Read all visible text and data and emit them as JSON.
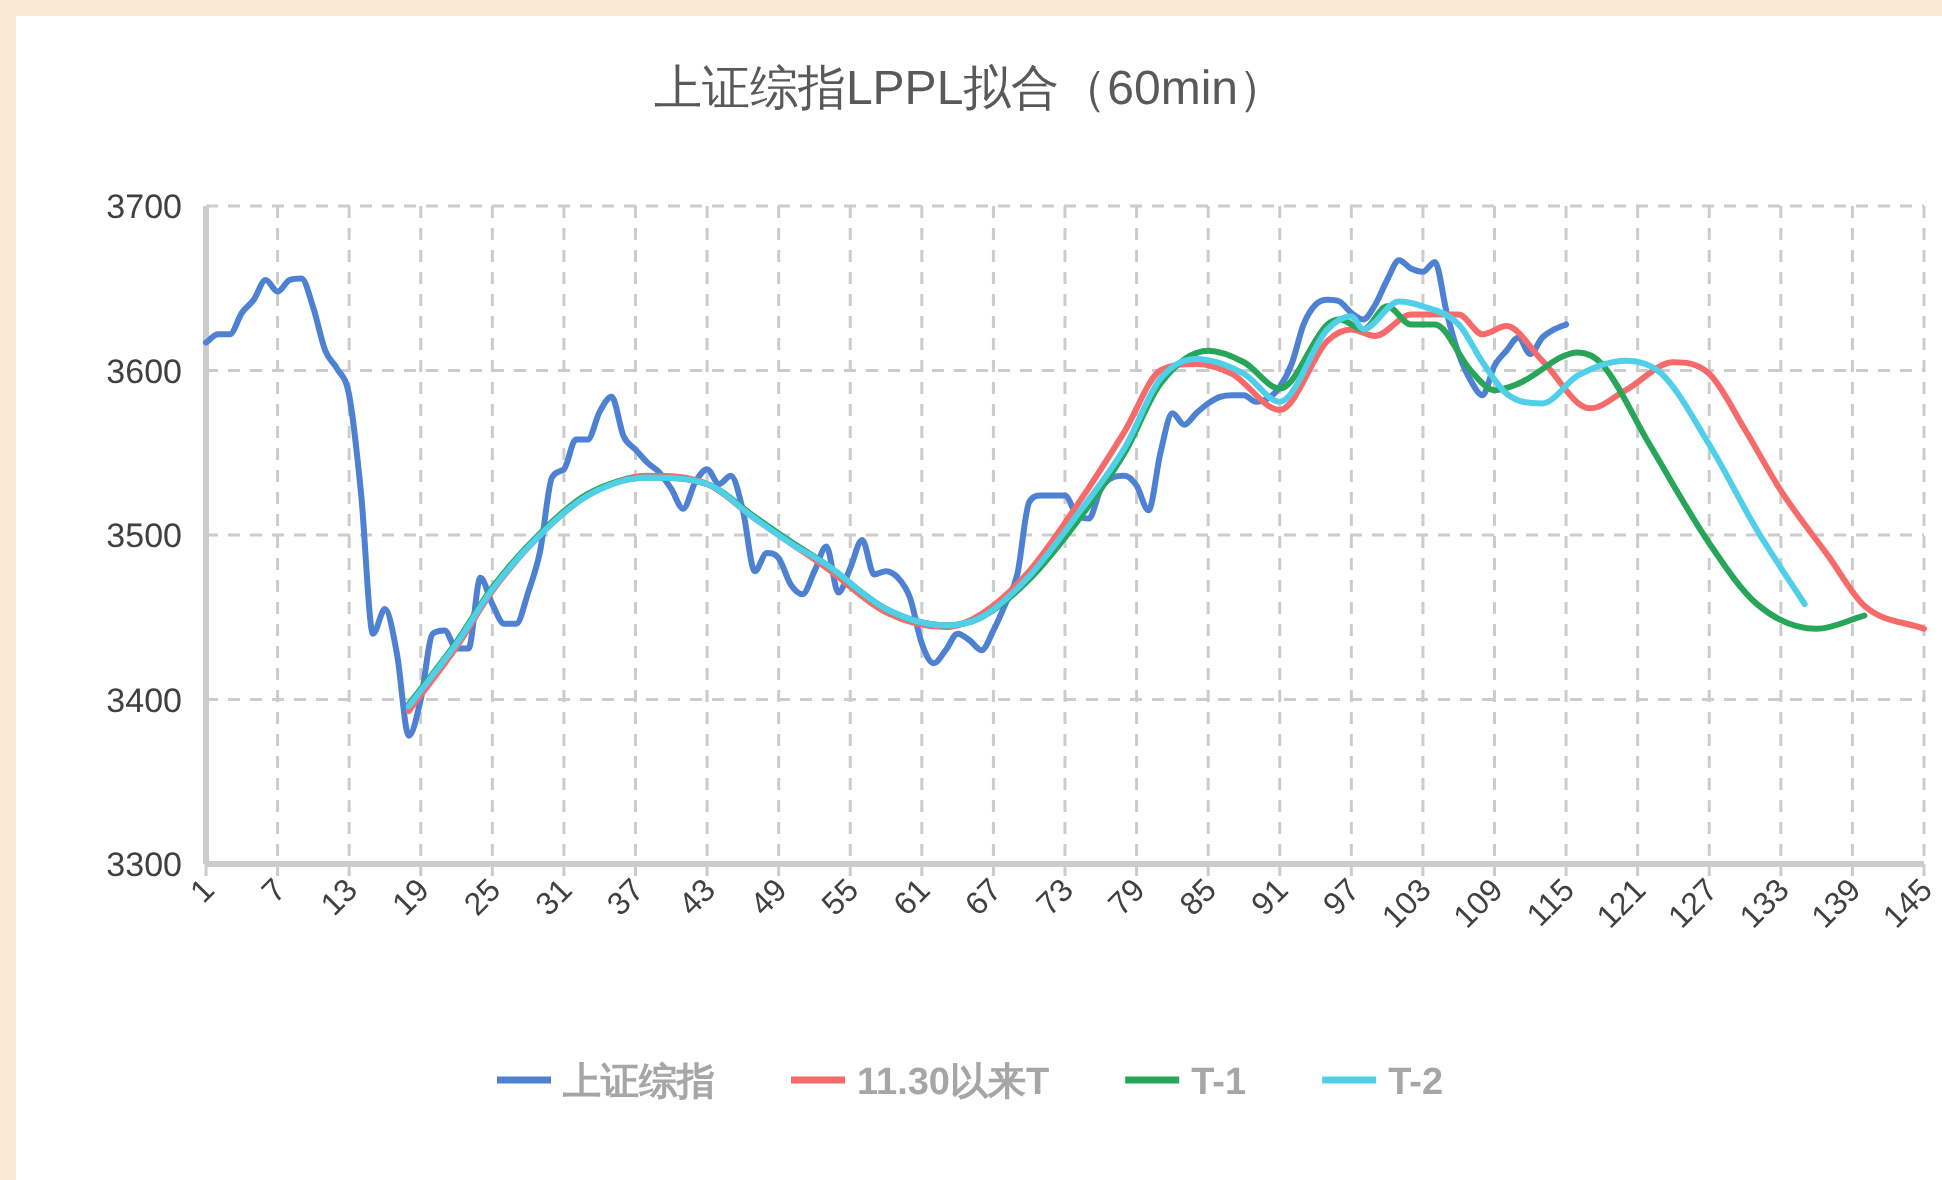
{
  "chart_data": {
    "type": "line",
    "title": "上证综指LPPL拟合（60min）",
    "xlim": [
      1,
      145
    ],
    "xticks": [
      1,
      7,
      13,
      19,
      25,
      31,
      37,
      43,
      49,
      55,
      61,
      67,
      73,
      79,
      85,
      91,
      97,
      103,
      109,
      115,
      121,
      127,
      133,
      139,
      145
    ],
    "ylim": [
      3300,
      3700
    ],
    "yticks": [
      3300,
      3400,
      3500,
      3600,
      3700
    ],
    "grid": true,
    "legend": "bottom",
    "marker": "none",
    "series": [
      {
        "name": "上证综指",
        "color": "#4f81d3",
        "x": [
          1,
          2,
          3,
          4,
          5,
          6,
          7,
          8,
          9,
          10,
          11,
          12,
          13,
          14,
          15,
          16,
          17,
          18,
          19,
          20,
          21,
          22,
          23,
          24,
          25,
          26,
          27,
          28,
          29,
          30,
          31,
          32,
          33,
          34,
          35,
          36,
          37,
          38,
          39,
          40,
          41,
          42,
          43,
          44,
          45,
          46,
          47,
          48,
          49,
          50,
          51,
          52,
          53,
          54,
          55,
          56,
          57,
          58,
          59,
          60,
          61,
          62,
          63,
          64,
          65,
          66,
          67,
          68,
          69,
          70,
          71,
          72,
          73,
          74,
          75,
          76,
          77,
          78,
          79,
          80,
          81,
          82,
          83,
          84,
          85,
          86,
          87,
          88,
          89,
          90,
          91,
          92,
          93,
          94,
          95,
          96,
          97,
          98,
          99,
          100,
          101,
          102,
          103,
          104,
          105,
          106,
          107,
          108,
          109,
          110,
          111,
          112,
          113,
          114,
          115
        ],
        "values": [
          3617,
          3622,
          3622,
          3635,
          3643,
          3655,
          3648,
          3655,
          3656,
          3638,
          3612,
          3601,
          3585,
          3525,
          3440,
          3455,
          3428,
          3378,
          3400,
          3440,
          3442,
          3431,
          3431,
          3474,
          3458,
          3446,
          3446,
          3465,
          3490,
          3535,
          3540,
          3558,
          3558,
          3575,
          3584,
          3560,
          3552,
          3544,
          3538,
          3528,
          3516,
          3532,
          3540,
          3531,
          3536,
          3515,
          3478,
          3489,
          3486,
          3470,
          3464,
          3478,
          3493,
          3465,
          3480,
          3497,
          3476,
          3478,
          3474,
          3462,
          3434,
          3422,
          3430,
          3440,
          3436,
          3430,
          3442,
          3458,
          3476,
          3520,
          3524,
          3524,
          3524,
          3512,
          3510,
          3528,
          3535,
          3536,
          3530,
          3515,
          3550,
          3574,
          3567,
          3574,
          3580,
          3584,
          3585,
          3585,
          3581,
          3583,
          3590,
          3604,
          3628,
          3640,
          3643,
          3642,
          3635,
          3631,
          3640,
          3655,
          3667,
          3662,
          3660,
          3666,
          3635,
          3610,
          3594,
          3585,
          3603,
          3612,
          3620,
          3610,
          3620,
          3625,
          3628
        ]
      },
      {
        "name": "11.30以来T",
        "color": "#f76a6a",
        "x": [
          18,
          22,
          25,
          29,
          33,
          38,
          43,
          47,
          50,
          53,
          58,
          63,
          66,
          70,
          74,
          78,
          81,
          84,
          87,
          91,
          95,
          97,
          99,
          102,
          106,
          108,
          110,
          113,
          117,
          120,
          124,
          127,
          130,
          133,
          137,
          140,
          145
        ],
        "values": [
          3393,
          3432,
          3466,
          3500,
          3524,
          3536,
          3531,
          3510,
          3495,
          3480,
          3453,
          3444,
          3452,
          3478,
          3518,
          3563,
          3600,
          3604,
          3598,
          3576,
          3618,
          3625,
          3621,
          3634,
          3634,
          3622,
          3627,
          3606,
          3577,
          3588,
          3605,
          3598,
          3564,
          3527,
          3487,
          3457,
          3443
        ]
      },
      {
        "name": "T-1",
        "color": "#27a65a",
        "x": [
          18,
          22,
          25,
          29,
          33,
          38,
          43,
          47,
          50,
          53,
          58,
          63,
          66,
          70,
          74,
          78,
          81,
          85,
          88,
          91,
          95,
          96,
          98,
          100,
          102,
          104,
          107,
          109,
          111,
          116,
          118,
          122,
          127,
          131,
          136,
          140
        ],
        "values": [
          3397,
          3435,
          3468,
          3501,
          3525,
          3535,
          3531,
          3511,
          3496,
          3482,
          3455,
          3445,
          3450,
          3473,
          3508,
          3550,
          3592,
          3612,
          3605,
          3589,
          3628,
          3631,
          3625,
          3639,
          3628,
          3628,
          3600,
          3588,
          3592,
          3611,
          3604,
          3555,
          3495,
          3458,
          3443,
          3451
        ]
      },
      {
        "name": "T-2",
        "color": "#4fd0e8",
        "x": [
          18,
          22,
          25,
          29,
          33,
          38,
          43,
          47,
          50,
          53,
          58,
          63,
          66,
          70,
          74,
          78,
          81,
          84,
          88,
          91,
          95,
          97,
          98,
          101,
          103,
          106,
          108,
          110,
          113,
          116,
          120,
          123,
          127,
          131,
          135
        ],
        "values": [
          3396,
          3434,
          3467,
          3500,
          3524,
          3535,
          3531,
          3510,
          3495,
          3482,
          3455,
          3445,
          3450,
          3475,
          3512,
          3553,
          3595,
          3607,
          3598,
          3581,
          3625,
          3633,
          3625,
          3642,
          3639,
          3628,
          3605,
          3586,
          3580,
          3597,
          3606,
          3598,
          3555,
          3503,
          3458
        ]
      }
    ]
  }
}
